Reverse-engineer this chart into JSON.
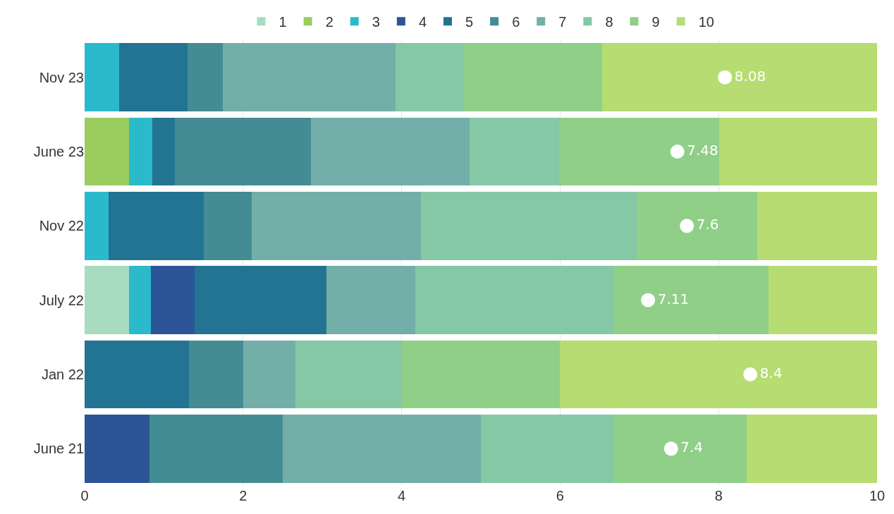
{
  "chart_data": {
    "type": "bar",
    "orientation": "horizontal",
    "stacked": true,
    "categories": [
      "Nov 23",
      "June 23",
      "Nov 22",
      "July 22",
      "Jan 22",
      "June 21"
    ],
    "xlim": [
      0,
      10
    ],
    "xticks": [
      0,
      2,
      4,
      6,
      8,
      10
    ],
    "grid": "x",
    "legend": "top",
    "marker": "circle",
    "series": [
      {
        "name": "1",
        "color": "#a8dcc0",
        "values": [
          0,
          0,
          0,
          0.56,
          0,
          0
        ]
      },
      {
        "name": "2",
        "color": "#9acd5e",
        "values": [
          0,
          0.56,
          0,
          0,
          0,
          0
        ]
      },
      {
        "name": "3",
        "color": "#2bbacc",
        "values": [
          0.44,
          0.29,
          0.3,
          0.28,
          0,
          0
        ]
      },
      {
        "name": "4",
        "color": "#2c5597",
        "values": [
          0,
          0,
          0,
          0.55,
          0,
          0.82
        ]
      },
      {
        "name": "5",
        "color": "#237392",
        "values": [
          0.86,
          0.29,
          1.2,
          1.66,
          1.32,
          0
        ]
      },
      {
        "name": "6",
        "color": "#448c94",
        "values": [
          0.44,
          1.72,
          0.61,
          0,
          0.68,
          1.68
        ]
      },
      {
        "name": "7",
        "color": "#73aea8",
        "values": [
          2.18,
          2.0,
          2.13,
          1.12,
          0.66,
          2.5
        ]
      },
      {
        "name": "8",
        "color": "#84c8a6",
        "values": [
          0.87,
          1.13,
          2.73,
          2.5,
          1.34,
          1.67
        ]
      },
      {
        "name": "9",
        "color": "#8fcf88",
        "values": [
          1.74,
          2.02,
          1.52,
          1.96,
          2.0,
          1.68
        ]
      },
      {
        "name": "10",
        "color": "#b6dc72",
        "values": [
          3.47,
          1.99,
          1.51,
          1.37,
          4.0,
          1.65
        ]
      },
      {
        "type": "scatter",
        "color": "#ffffff",
        "values": [
          8.08,
          7.48,
          7.6,
          7.11,
          8.4,
          7.4
        ],
        "value_labels": [
          "8.08",
          "7.48",
          "7.6",
          "7.11",
          "8.4",
          "7.4"
        ]
      }
    ]
  }
}
